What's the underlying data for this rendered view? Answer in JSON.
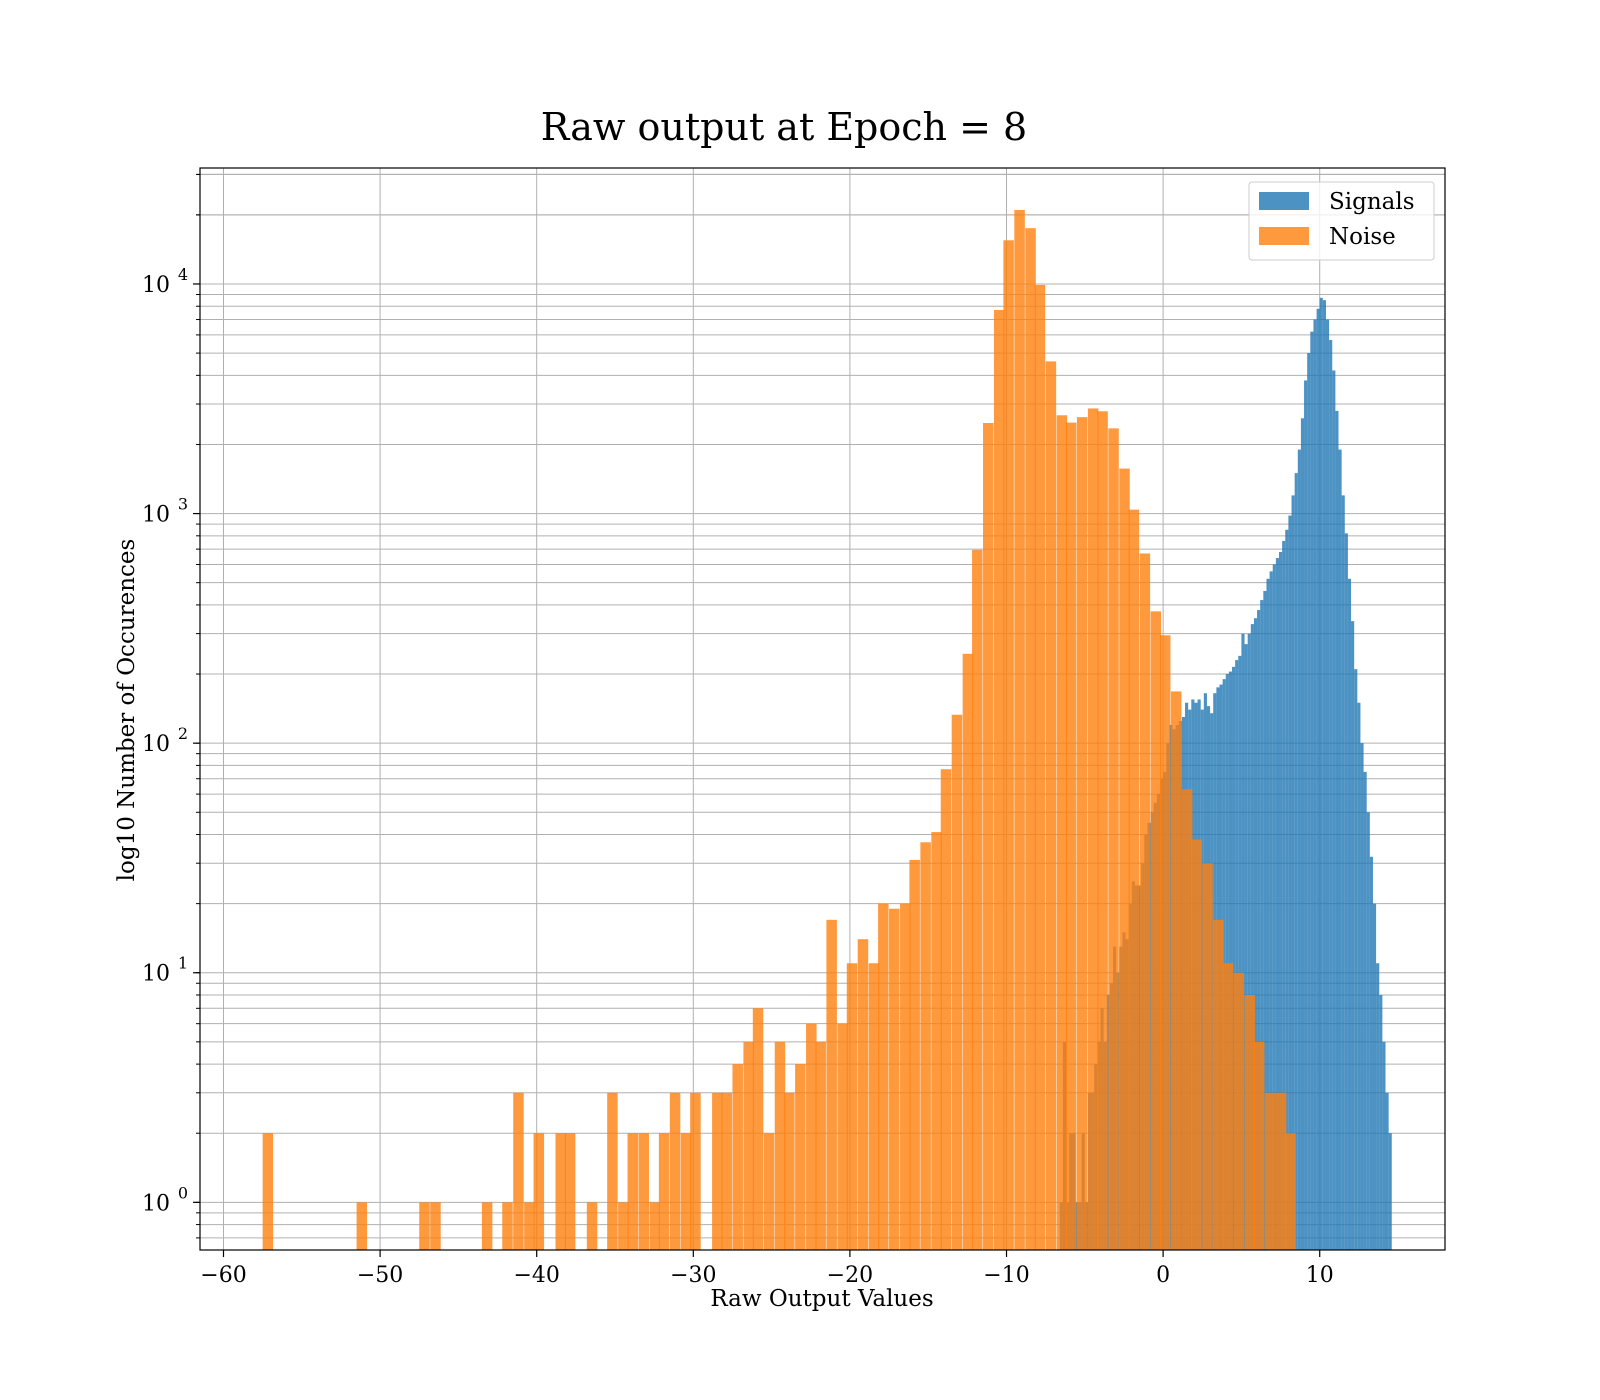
{
  "chart_data": {
    "type": "bar",
    "title": "Raw output at Epoch = 8",
    "xlabel": "Raw Output Values",
    "ylabel": "log10 Number of Occurences",
    "xlim": [
      -61.5,
      18
    ],
    "ylim": [
      0.62,
      32000
    ],
    "yscale": "log",
    "grid": true,
    "legend_position": "top-right",
    "x_ticks": [
      {
        "value": -60,
        "label": "−60"
      },
      {
        "value": -50,
        "label": "−50"
      },
      {
        "value": -40,
        "label": "−40"
      },
      {
        "value": -30,
        "label": "−30"
      },
      {
        "value": -20,
        "label": "−20"
      },
      {
        "value": -10,
        "label": "−10"
      },
      {
        "value": 0,
        "label": "0"
      },
      {
        "value": 10,
        "label": "10"
      }
    ],
    "y_ticks": [
      {
        "value": 1,
        "base": "10",
        "exp": "0"
      },
      {
        "value": 10,
        "base": "10",
        "exp": "1"
      },
      {
        "value": 100,
        "base": "10",
        "exp": "2"
      },
      {
        "value": 1000,
        "base": "10",
        "exp": "3"
      },
      {
        "value": 10000,
        "base": "10",
        "exp": "4"
      }
    ],
    "series": [
      {
        "name": "Signals",
        "color": "#1f77b4",
        "opacity": 0.8,
        "bin_width": 0.2,
        "bins": [
          [
            -6.6,
            1
          ],
          [
            -6.4,
            5
          ],
          [
            -6.2,
            1
          ],
          [
            -6.0,
            2
          ],
          [
            -5.8,
            2
          ],
          [
            -5.6,
            1
          ],
          [
            -5.4,
            1
          ],
          [
            -5.2,
            2
          ],
          [
            -5.0,
            1
          ],
          [
            -4.8,
            3
          ],
          [
            -4.6,
            3
          ],
          [
            -4.4,
            4
          ],
          [
            -4.2,
            5
          ],
          [
            -4.0,
            7
          ],
          [
            -3.8,
            5
          ],
          [
            -3.6,
            8
          ],
          [
            -3.4,
            9
          ],
          [
            -3.2,
            13
          ],
          [
            -3.0,
            10
          ],
          [
            -2.8,
            13
          ],
          [
            -2.6,
            15
          ],
          [
            -2.4,
            14
          ],
          [
            -2.2,
            20
          ],
          [
            -2.0,
            25
          ],
          [
            -1.8,
            24
          ],
          [
            -1.6,
            24
          ],
          [
            -1.4,
            30
          ],
          [
            -1.2,
            40
          ],
          [
            -1.0,
            45
          ],
          [
            -0.8,
            50
          ],
          [
            -0.6,
            55
          ],
          [
            -0.4,
            60
          ],
          [
            -0.2,
            70
          ],
          [
            0.0,
            75
          ],
          [
            0.2,
            100
          ],
          [
            0.4,
            120
          ],
          [
            0.6,
            115
          ],
          [
            0.8,
            120
          ],
          [
            1.0,
            125
          ],
          [
            1.2,
            130
          ],
          [
            1.4,
            150
          ],
          [
            1.6,
            140
          ],
          [
            1.8,
            155
          ],
          [
            2.0,
            150
          ],
          [
            2.2,
            155
          ],
          [
            2.4,
            140
          ],
          [
            2.6,
            165
          ],
          [
            2.8,
            145
          ],
          [
            3.0,
            135
          ],
          [
            3.2,
            165
          ],
          [
            3.4,
            175
          ],
          [
            3.6,
            180
          ],
          [
            3.8,
            190
          ],
          [
            4.0,
            200
          ],
          [
            4.2,
            205
          ],
          [
            4.4,
            215
          ],
          [
            4.6,
            230
          ],
          [
            4.8,
            240
          ],
          [
            5.0,
            300
          ],
          [
            5.2,
            270
          ],
          [
            5.4,
            300
          ],
          [
            5.6,
            330
          ],
          [
            5.8,
            350
          ],
          [
            6.0,
            380
          ],
          [
            6.2,
            420
          ],
          [
            6.4,
            460
          ],
          [
            6.6,
            520
          ],
          [
            6.8,
            560
          ],
          [
            7.0,
            600
          ],
          [
            7.2,
            640
          ],
          [
            7.4,
            680
          ],
          [
            7.6,
            760
          ],
          [
            7.8,
            850
          ],
          [
            8.0,
            980
          ],
          [
            8.2,
            1200
          ],
          [
            8.4,
            1500
          ],
          [
            8.6,
            1900
          ],
          [
            8.8,
            2600
          ],
          [
            9.0,
            3800
          ],
          [
            9.2,
            5000
          ],
          [
            9.4,
            6200
          ],
          [
            9.6,
            7000
          ],
          [
            9.8,
            7800
          ],
          [
            10.0,
            8700
          ],
          [
            10.2,
            8500
          ],
          [
            10.4,
            7000
          ],
          [
            10.6,
            5700
          ],
          [
            10.8,
            4200
          ],
          [
            11.0,
            2800
          ],
          [
            11.2,
            1900
          ],
          [
            11.4,
            1200
          ],
          [
            11.6,
            820
          ],
          [
            11.8,
            520
          ],
          [
            12.0,
            340
          ],
          [
            12.2,
            210
          ],
          [
            12.4,
            150
          ],
          [
            12.6,
            100
          ],
          [
            12.8,
            75
          ],
          [
            13.0,
            50
          ],
          [
            13.2,
            32
          ],
          [
            13.4,
            20
          ],
          [
            13.6,
            11
          ],
          [
            13.8,
            8
          ],
          [
            14.0,
            5
          ],
          [
            14.2,
            3
          ],
          [
            14.4,
            2
          ]
        ]
      },
      {
        "name": "Noise",
        "color": "#ff7f0e",
        "opacity": 0.8,
        "bin_width": 0.67,
        "bins": [
          [
            -57.5,
            2
          ],
          [
            -51.5,
            1
          ],
          [
            -47.5,
            1
          ],
          [
            -46.8,
            1
          ],
          [
            -43.5,
            1
          ],
          [
            -42.2,
            1
          ],
          [
            -41.5,
            3
          ],
          [
            -40.8,
            1
          ],
          [
            -40.2,
            2
          ],
          [
            -38.8,
            2
          ],
          [
            -38.2,
            2
          ],
          [
            -36.8,
            1
          ],
          [
            -35.5,
            3
          ],
          [
            -34.8,
            1
          ],
          [
            -34.2,
            2
          ],
          [
            -33.5,
            2
          ],
          [
            -32.8,
            1
          ],
          [
            -32.2,
            2
          ],
          [
            -31.5,
            3
          ],
          [
            -30.8,
            2
          ],
          [
            -30.2,
            3
          ],
          [
            -28.8,
            3
          ],
          [
            -28.2,
            3
          ],
          [
            -27.5,
            4
          ],
          [
            -26.8,
            5
          ],
          [
            -26.2,
            7
          ],
          [
            -25.5,
            2
          ],
          [
            -24.8,
            5
          ],
          [
            -24.2,
            3
          ],
          [
            -23.5,
            4
          ],
          [
            -22.8,
            6
          ],
          [
            -22.2,
            5
          ],
          [
            -21.5,
            17
          ],
          [
            -20.8,
            6
          ],
          [
            -20.2,
            11
          ],
          [
            -19.5,
            14
          ],
          [
            -18.8,
            11
          ],
          [
            -18.2,
            20
          ],
          [
            -17.5,
            19
          ],
          [
            -16.8,
            20
          ],
          [
            -16.2,
            31
          ],
          [
            -15.5,
            37
          ],
          [
            -14.8,
            41
          ],
          [
            -14.2,
            77
          ],
          [
            -13.5,
            133
          ],
          [
            -12.8,
            245
          ],
          [
            -12.2,
            695
          ],
          [
            -11.5,
            2480
          ],
          [
            -10.8,
            7700
          ],
          [
            -10.2,
            15500
          ],
          [
            -9.5,
            21000
          ],
          [
            -8.8,
            17500
          ],
          [
            -8.2,
            9900
          ],
          [
            -7.5,
            4600
          ],
          [
            -6.8,
            2680
          ],
          [
            -6.2,
            2490
          ],
          [
            -5.5,
            2630
          ],
          [
            -4.8,
            2870
          ],
          [
            -4.2,
            2790
          ],
          [
            -3.5,
            2350
          ],
          [
            -2.8,
            1570
          ],
          [
            -2.2,
            1040
          ],
          [
            -1.5,
            670
          ],
          [
            -0.8,
            375
          ],
          [
            -0.2,
            295
          ],
          [
            0.5,
            168
          ],
          [
            1.2,
            63
          ],
          [
            1.8,
            38
          ],
          [
            2.5,
            30
          ],
          [
            3.2,
            17
          ],
          [
            3.8,
            11
          ],
          [
            4.5,
            10
          ],
          [
            5.2,
            8
          ],
          [
            5.8,
            5
          ],
          [
            6.5,
            3
          ],
          [
            7.2,
            3
          ],
          [
            7.8,
            2
          ]
        ]
      }
    ]
  }
}
